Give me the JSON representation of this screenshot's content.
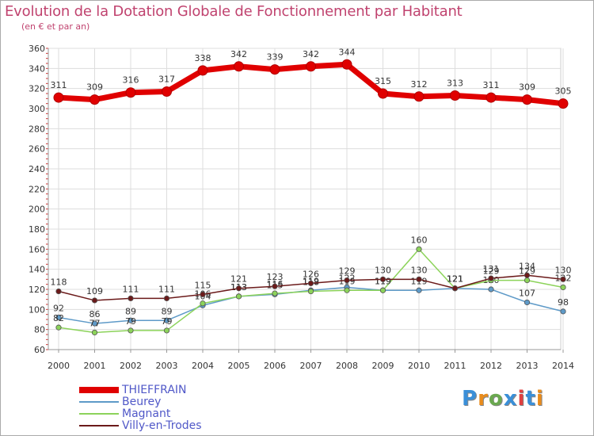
{
  "title": "Evolution de la Dotation Globale de Fonctionnement par Habitant",
  "subtitle": "(en € et par an)",
  "logo_text": "Proxiti",
  "logo_colors": [
    "#3a8fd8",
    "#e98c1c",
    "#6aa84f",
    "#3a8fd8",
    "#e04040",
    "#3a8fd8",
    "#e98c1c"
  ],
  "chart_data": {
    "type": "line",
    "categories": [
      "2000",
      "2001",
      "2002",
      "2003",
      "2004",
      "2005",
      "2006",
      "2007",
      "2008",
      "2009",
      "2010",
      "2011",
      "2012",
      "2013",
      "2014"
    ],
    "ylim": [
      60,
      360
    ],
    "yticks": [
      60,
      80,
      100,
      120,
      140,
      160,
      180,
      200,
      220,
      240,
      260,
      280,
      300,
      320,
      340,
      360
    ],
    "grid": true,
    "series": [
      {
        "name": "THIEFFRAIN",
        "color": "#e00000",
        "values": [
          311,
          309,
          316,
          317,
          338,
          342,
          339,
          342,
          344,
          315,
          312,
          313,
          311,
          309,
          305
        ]
      },
      {
        "name": "Beurey",
        "color": "#5e9ac8",
        "values": [
          92,
          86,
          89,
          89,
          104,
          113,
          115,
          119,
          122,
          119,
          119,
          121,
          120,
          107,
          98
        ]
      },
      {
        "name": "Magnant",
        "color": "#8cd35a",
        "values": [
          82,
          77,
          79,
          79,
          106,
          113,
          116,
          118,
          119,
          119,
          160,
          121,
          129,
          129,
          122
        ]
      },
      {
        "name": "Villy-en-Trodes",
        "color": "#6b1a1a",
        "values": [
          118,
          109,
          111,
          111,
          115,
          121,
          123,
          126,
          129,
          130,
          130,
          121,
          131,
          134,
          130
        ]
      }
    ]
  }
}
